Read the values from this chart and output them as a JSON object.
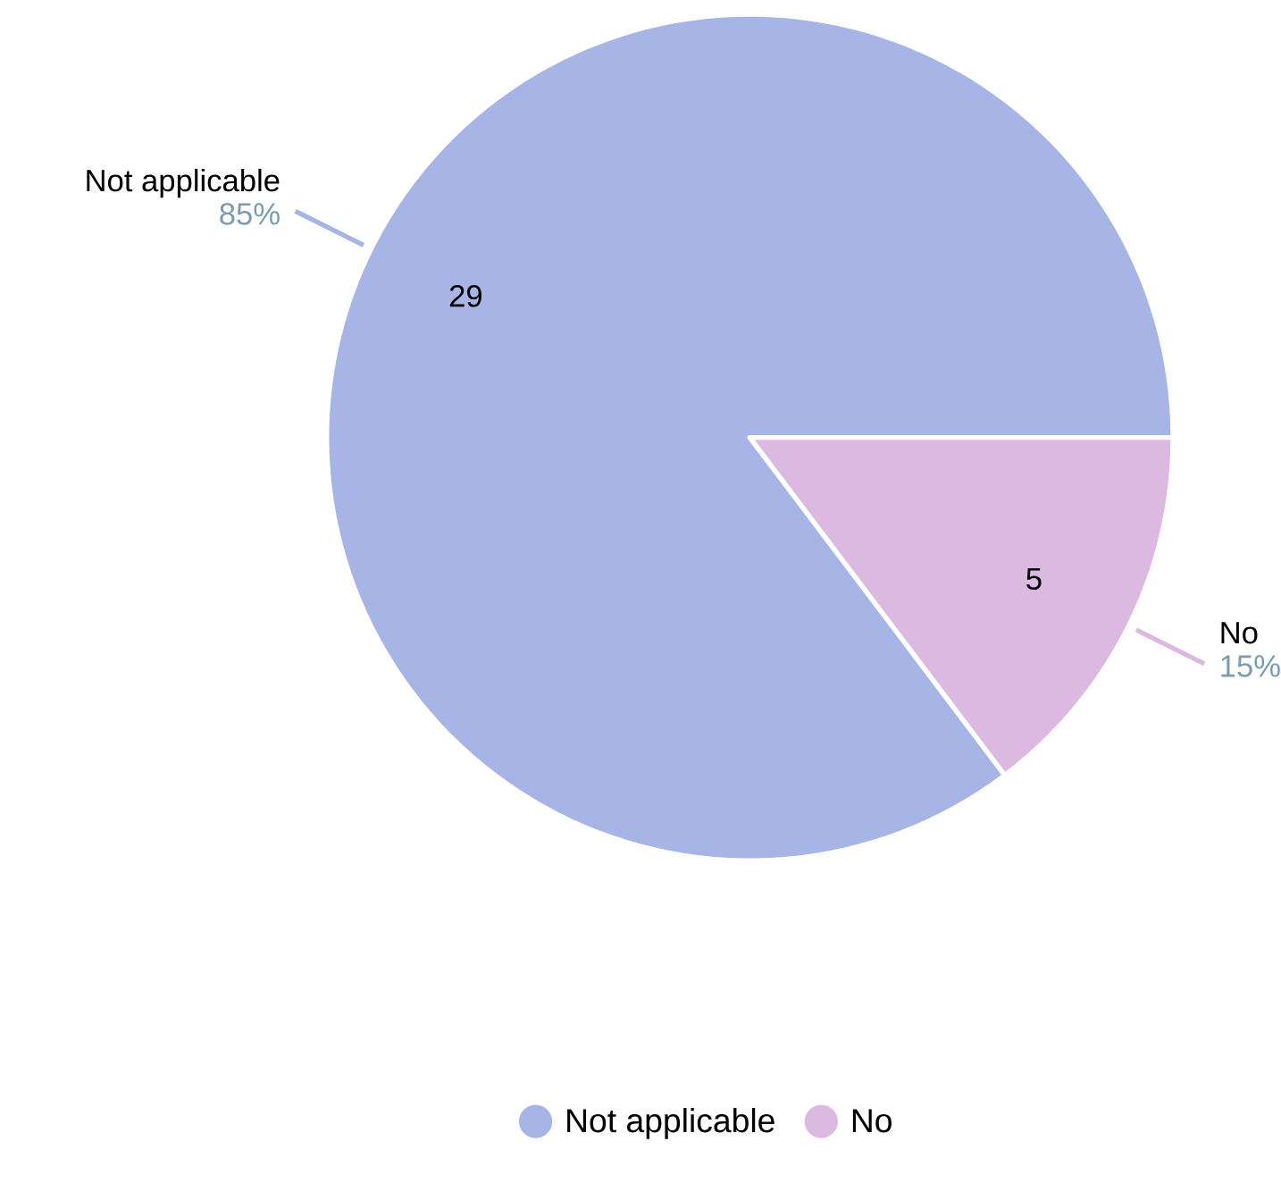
{
  "chart_data": {
    "type": "pie",
    "categories": [
      "Not applicable",
      "No"
    ],
    "values": [
      29,
      5
    ],
    "colors": [
      "#a6b4e6",
      "#dbb9e1"
    ],
    "value_labels": [
      "29",
      "5"
    ],
    "annotations": [
      "85%",
      "15%"
    ],
    "legend": "bottom"
  }
}
